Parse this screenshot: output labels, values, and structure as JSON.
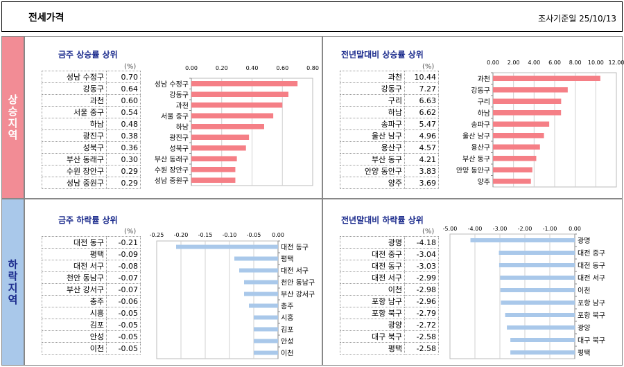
{
  "header": {
    "title": "전세가격",
    "date": "조사기준일    25/10/13"
  },
  "sections": {
    "up": "상승지역",
    "down": "하락지역"
  },
  "colors": {
    "up_bar": "#f57f86",
    "down_bar": "#a9c8ea"
  },
  "unit": "(%)",
  "chart_data": [
    {
      "type": "bar",
      "title": "금주 상승률 상위",
      "categories": [
        "성남 수정구",
        "강동구",
        "과천",
        "서울 중구",
        "하남",
        "광진구",
        "성북구",
        "부산 동래구",
        "수원 장안구",
        "성남 중원구"
      ],
      "values": [
        0.7,
        0.64,
        0.6,
        0.54,
        0.48,
        0.38,
        0.36,
        0.3,
        0.29,
        0.29
      ],
      "labels": [
        "0.70",
        "0.64",
        "0.60",
        "0.54",
        "0.48",
        "0.38",
        "0.36",
        "0.30",
        "0.29",
        "0.29"
      ],
      "ticks": [
        "0.00",
        "0.20",
        "0.40",
        "0.60",
        "0.80"
      ],
      "ylim": [
        0,
        0.8
      ]
    },
    {
      "type": "bar",
      "title": "전년말대비 상승률 상위",
      "categories": [
        "과천",
        "강동구",
        "구리",
        "하남",
        "송파구",
        "울산 남구",
        "용산구",
        "부산 동구",
        "안양 동안구",
        "양주"
      ],
      "values": [
        10.44,
        7.27,
        6.63,
        6.62,
        5.47,
        4.96,
        4.57,
        4.21,
        3.83,
        3.69
      ],
      "labels": [
        "10.44",
        "7.27",
        "6.63",
        "6.62",
        "5.47",
        "4.96",
        "4.57",
        "4.21",
        "3.83",
        "3.69"
      ],
      "ticks": [
        "0.00",
        "2.00",
        "4.00",
        "6.00",
        "8.00",
        "10.00",
        "12.00"
      ],
      "ylim": [
        0,
        12
      ]
    },
    {
      "type": "bar",
      "title": "금주 하락률 상위",
      "categories": [
        "대전 동구",
        "평택",
        "대전 서구",
        "천안 동남구",
        "부산 강서구",
        "충주",
        "시흥",
        "김포",
        "안성",
        "이천"
      ],
      "values": [
        -0.21,
        -0.09,
        -0.08,
        -0.07,
        -0.07,
        -0.06,
        -0.05,
        -0.05,
        -0.05,
        -0.05
      ],
      "labels": [
        "-0.21",
        "-0.09",
        "-0.08",
        "-0.07",
        "-0.07",
        "-0.06",
        "-0.05",
        "-0.05",
        "-0.05",
        "-0.05"
      ],
      "ticks": [
        "-0.25",
        "-0.20",
        "-0.15",
        "-0.10",
        "-0.05",
        "0.00"
      ],
      "ylim": [
        -0.25,
        0
      ]
    },
    {
      "type": "bar",
      "title": "전년말대비 하락률 상위",
      "categories": [
        "광명",
        "대전 중구",
        "대전 동구",
        "대전 서구",
        "이천",
        "포항 남구",
        "포항 북구",
        "광양",
        "대구 북구",
        "평택"
      ],
      "values": [
        -4.18,
        -3.04,
        -3.03,
        -2.99,
        -2.98,
        -2.96,
        -2.79,
        -2.72,
        -2.58,
        -2.58
      ],
      "labels": [
        "-4.18",
        "-3.04",
        "-3.03",
        "-2.99",
        "-2.98",
        "-2.96",
        "-2.79",
        "-2.72",
        "-2.58",
        "-2.58"
      ],
      "ticks": [
        "-5.00",
        "-4.00",
        "-3.00",
        "-2.00",
        "-1.00",
        "0.00"
      ],
      "ylim": [
        -5,
        0
      ]
    }
  ]
}
